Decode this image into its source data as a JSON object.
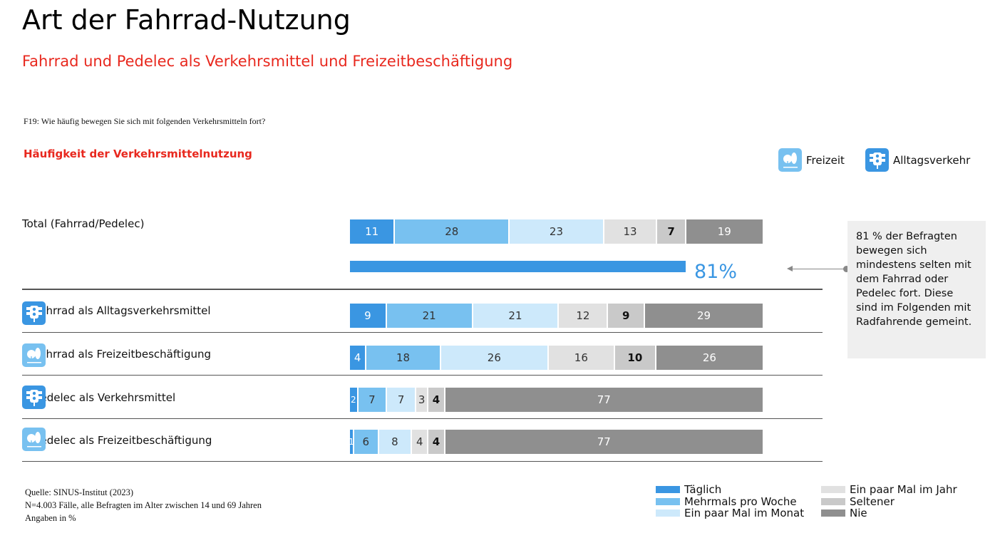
{
  "title": "Art der Fahrrad-Nutzung",
  "subtitle": "Fahrrad und Pedelec als Verkehrsmittel und Freizeitbeschäftigung",
  "question": "F19: Wie häufig bewegen Sie sich mit folgenden Verkehrsmitteln fort?",
  "section": "Häufigkeit der Verkehrsmittelnutzung",
  "icon_legend": [
    {
      "icon": "trees-icon",
      "label": "Freizeit"
    },
    {
      "icon": "traffic-light-icon",
      "label": "Alltagsverkehr"
    }
  ],
  "colors": [
    "#3a96e2",
    "#78c1f0",
    "#cde9fb",
    "#e1e1e1",
    "#c9c9c9",
    "#8f8f8f"
  ],
  "note": "81 % der Befragten bewegen sich mindestens selten mit dem Fahrrad oder Pedelec fort. Diese sind im Folgenden mit Radfahrende gemeint.",
  "summary": {
    "label": "81%",
    "value": 81
  },
  "source": [
    "Quelle: SINUS-Institut (2023)",
    "N=4.003 Fälle, alle Befragten im Alter zwischen 14 und 69 Jahren",
    "Angaben in %"
  ],
  "chart_data": {
    "type": "bar",
    "orientation": "horizontal",
    "stacked": true,
    "title": "Häufigkeit der Verkehrsmittelnutzung",
    "series_names": [
      "Täglich",
      "Mehrmals pro Woche",
      "Ein paar Mal im Monat",
      "Ein paar Mal im Jahr",
      "Seltener",
      "Nie"
    ],
    "rows": [
      {
        "label": "Total (Fahrrad/Pedelec)",
        "icon": "",
        "values": [
          11,
          28,
          23,
          13,
          7,
          19
        ]
      },
      {
        "label": "Fahrrad als Alltagsverkehrsmittel",
        "icon": "traffic-light-icon",
        "values": [
          9,
          21,
          21,
          12,
          9,
          29
        ]
      },
      {
        "label": "Fahrrad als Freizeitbeschäftigung",
        "icon": "trees-icon",
        "values": [
          4,
          18,
          26,
          16,
          10,
          26
        ]
      },
      {
        "label": "Pedelec als Verkehrsmittel",
        "icon": "traffic-light-icon",
        "values": [
          2,
          7,
          7,
          3,
          4,
          77
        ]
      },
      {
        "label": "Pedelec als Freizeitbeschäftigung",
        "icon": "trees-icon",
        "values": [
          1,
          6,
          8,
          4,
          4,
          77
        ]
      }
    ],
    "legend_position": "bottom-right"
  }
}
